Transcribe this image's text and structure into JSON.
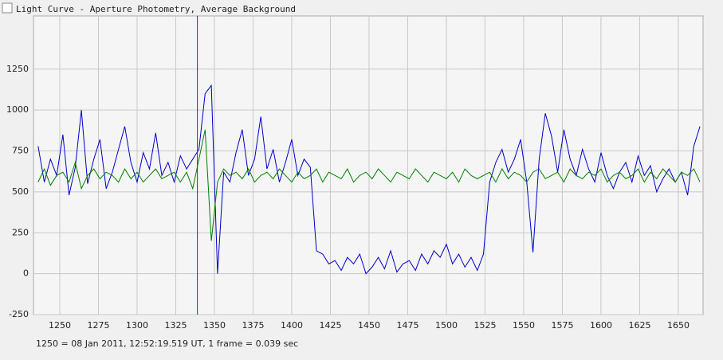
{
  "window_title": "Light Curve - Aperture Photometry, Average Background",
  "footer": "1250 = 08 Jan 2011, 12:52:19.519 UT, 1 frame = 0.039 sec",
  "chart_data": {
    "type": "line",
    "x": [
      1236,
      1240,
      1244,
      1248,
      1252,
      1256,
      1260,
      1264,
      1268,
      1272,
      1276,
      1280,
      1284,
      1288,
      1292,
      1296,
      1300,
      1304,
      1308,
      1312,
      1316,
      1320,
      1324,
      1328,
      1332,
      1336,
      1340,
      1344,
      1348,
      1352,
      1356,
      1360,
      1364,
      1368,
      1372,
      1376,
      1380,
      1384,
      1388,
      1392,
      1396,
      1400,
      1404,
      1408,
      1412,
      1416,
      1420,
      1424,
      1428,
      1432,
      1436,
      1440,
      1444,
      1448,
      1452,
      1456,
      1460,
      1464,
      1468,
      1472,
      1476,
      1480,
      1484,
      1488,
      1492,
      1496,
      1500,
      1504,
      1508,
      1512,
      1516,
      1520,
      1524,
      1528,
      1532,
      1536,
      1540,
      1544,
      1548,
      1552,
      1556,
      1560,
      1564,
      1568,
      1572,
      1576,
      1580,
      1584,
      1588,
      1592,
      1596,
      1600,
      1604,
      1608,
      1612,
      1616,
      1620,
      1624,
      1628,
      1632,
      1636,
      1640,
      1644,
      1648,
      1652,
      1656,
      1660,
      1664
    ],
    "series": [
      {
        "color": "#0000cc",
        "values": [
          780,
          560,
          700,
          600,
          850,
          480,
          650,
          1000,
          550,
          700,
          820,
          520,
          620,
          760,
          900,
          680,
          560,
          740,
          640,
          860,
          600,
          680,
          560,
          720,
          640,
          700,
          760,
          1100,
          1150,
          0,
          620,
          560,
          740,
          880,
          600,
          700,
          960,
          640,
          760,
          560,
          680,
          820,
          600,
          700,
          650,
          140,
          120,
          60,
          80,
          20,
          100,
          60,
          120,
          0,
          40,
          100,
          30,
          140,
          10,
          60,
          80,
          20,
          120,
          60,
          140,
          100,
          180,
          60,
          120,
          40,
          100,
          20,
          120,
          560,
          680,
          760,
          620,
          700,
          820,
          560,
          130,
          700,
          980,
          840,
          620,
          880,
          700,
          600,
          760,
          640,
          560,
          740,
          600,
          520,
          620,
          680,
          560,
          720,
          600,
          660,
          500,
          580,
          640,
          560,
          620,
          480,
          780,
          900
        ]
      },
      {
        "color": "#008000",
        "values": [
          560,
          640,
          540,
          600,
          620,
          560,
          680,
          520,
          600,
          640,
          580,
          620,
          600,
          560,
          640,
          580,
          620,
          560,
          600,
          640,
          580,
          600,
          620,
          560,
          620,
          520,
          700,
          880,
          200,
          560,
          640,
          600,
          620,
          580,
          640,
          560,
          600,
          620,
          580,
          640,
          600,
          560,
          620,
          580,
          600,
          640,
          560,
          620,
          600,
          580,
          640,
          560,
          600,
          620,
          580,
          640,
          600,
          560,
          620,
          600,
          580,
          640,
          600,
          560,
          620,
          600,
          580,
          620,
          560,
          640,
          600,
          580,
          600,
          620,
          560,
          640,
          580,
          620,
          600,
          560,
          620,
          640,
          580,
          600,
          620,
          560,
          640,
          600,
          580,
          620,
          600,
          640,
          560,
          600,
          620,
          580,
          600,
          640,
          560,
          620,
          580,
          640,
          600,
          560,
          620,
          600,
          640,
          560
        ]
      }
    ],
    "cursor": 1339,
    "xlim": [
      1233,
      1666
    ],
    "ylim": [
      -250,
      1575
    ],
    "xticks": [
      1250,
      1275,
      1300,
      1325,
      1350,
      1375,
      1400,
      1425,
      1450,
      1475,
      1500,
      1525,
      1550,
      1575,
      1600,
      1625,
      1650
    ],
    "yticks": [
      -250,
      0,
      250,
      500,
      750,
      1000,
      1250
    ],
    "grid": true
  }
}
